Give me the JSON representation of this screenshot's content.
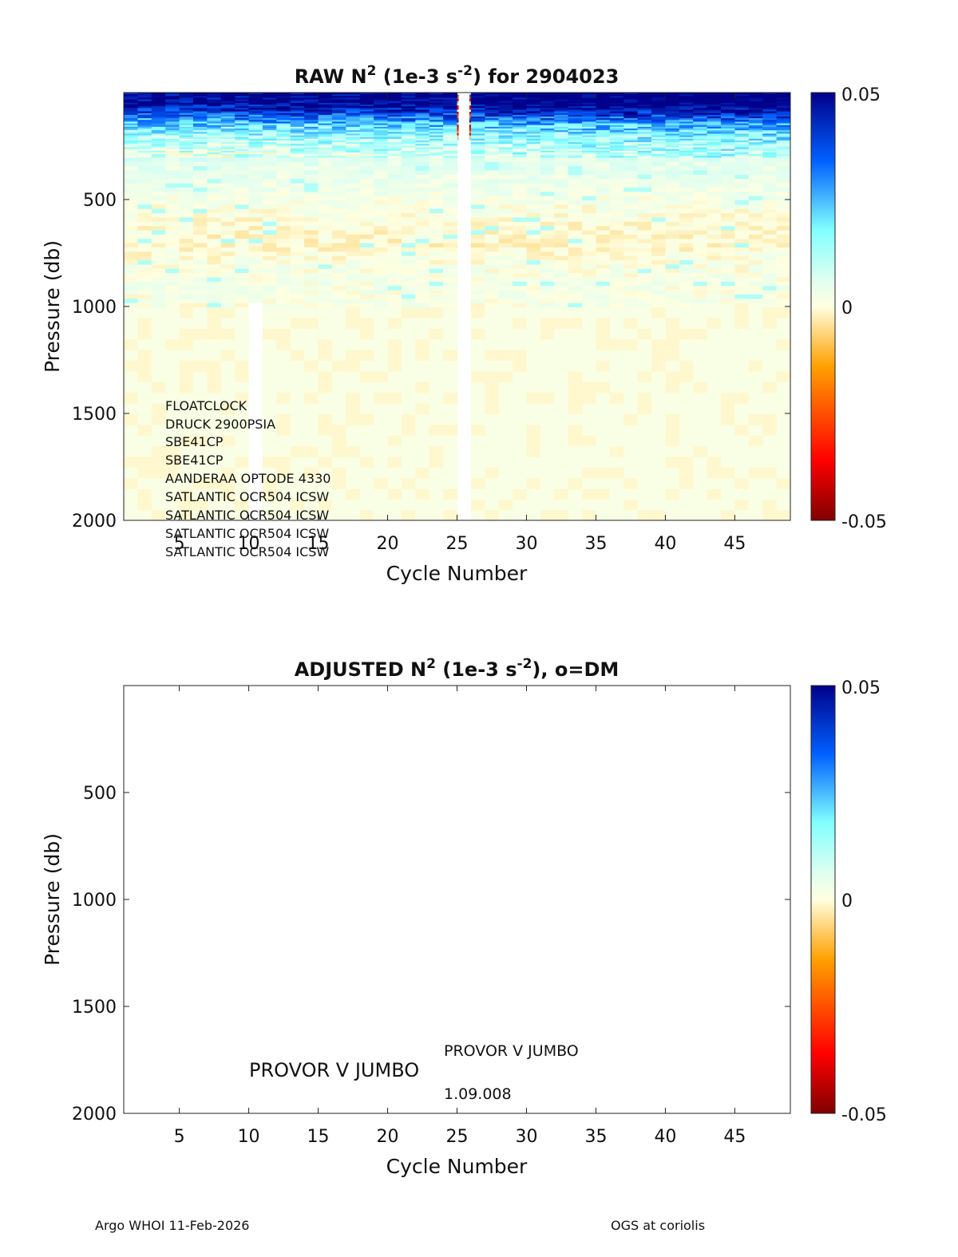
{
  "colormap": {
    "stops": [
      "#800000",
      "#ff0000",
      "#ffa000",
      "#ffffe0",
      "#e0fff0",
      "#80ffff",
      "#0060ff",
      "#00008a"
    ],
    "blank": "#ffffff"
  },
  "chart_data": [
    {
      "type": "heatmap",
      "title_main": "RAW N",
      "title_sup": "2",
      "title_units": " (1e-3 s",
      "title_units_sup": "-2",
      "title_tail": ") for 2904023",
      "xlabel": "Cycle Number",
      "ylabel": "Pressure (db)",
      "xlim": [
        1,
        49
      ],
      "ylim": [
        0,
        2000
      ],
      "y_reversed": true,
      "xticks": [
        5,
        10,
        15,
        20,
        25,
        30,
        35,
        40,
        45
      ],
      "yticks": [
        500,
        1000,
        1500,
        2000
      ],
      "colorbar": {
        "min": -0.05,
        "max": 0.05,
        "ticks": [
          "0.05",
          "0",
          "-0.05"
        ]
      },
      "missing_profiles": [
        25
      ],
      "short_profiles": [
        {
          "cycle": 10,
          "max_pressure": 980
        }
      ],
      "sensor_annotations": [
        "FLOATCLOCK",
        "DRUCK 2900PSIA",
        "SBE41CP",
        "SBE41CP",
        "AANDERAA OPTODE 4330",
        "SATLANTIC OCR504 ICSW",
        "SATLANTIC OCR504 ICSW",
        "SATLANTIC OCR504 ICSW",
        "SATLANTIC OCR504 ICSW"
      ],
      "value_profile": {
        "pressure": [
          0,
          50,
          100,
          150,
          200,
          250,
          300,
          400,
          500,
          600,
          700,
          800,
          900,
          1000,
          1100,
          1500,
          2000
        ],
        "n2": [
          0.05,
          0.048,
          0.035,
          0.02,
          0.012,
          0.008,
          0.006,
          0.004,
          0.002,
          0.0,
          -0.001,
          0.0015,
          0.002,
          0.0015,
          0.001,
          0.0008,
          0.0008
        ]
      }
    },
    {
      "type": "heatmap",
      "title_main": "ADJUSTED N",
      "title_sup": "2",
      "title_units": " (1e-3 s",
      "title_units_sup": "-2",
      "title_tail": "), o=DM",
      "xlabel": "Cycle Number",
      "ylabel": "Pressure (db)",
      "xlim": [
        1,
        49
      ],
      "ylim": [
        0,
        2000
      ],
      "y_reversed": true,
      "xticks": [
        5,
        10,
        15,
        20,
        25,
        30,
        35,
        40,
        45
      ],
      "yticks": [
        500,
        1000,
        1500,
        2000
      ],
      "colorbar": {
        "min": -0.05,
        "max": 0.05,
        "ticks": [
          "0.05",
          "0",
          "-0.05"
        ]
      },
      "empty": true,
      "annotations": {
        "platform_left": "PROVOR V JUMBO",
        "platform_right": "PROVOR V JUMBO",
        "firmware": "1.09.008"
      }
    }
  ],
  "footer": {
    "left": "Argo WHOI 11-Feb-2026",
    "right": "OGS at coriolis"
  }
}
